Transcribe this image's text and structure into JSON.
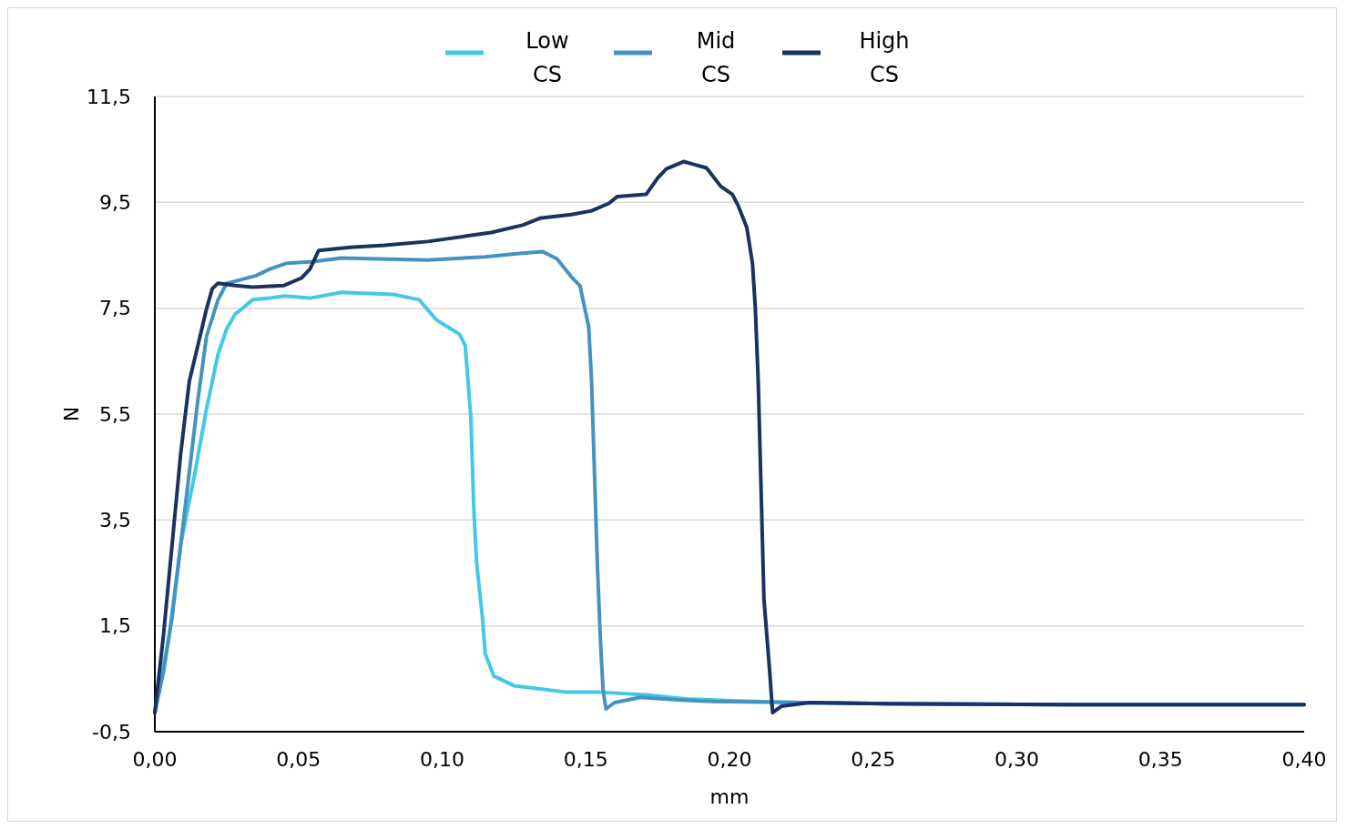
{
  "chart_data": {
    "type": "line",
    "xlabel": "mm",
    "ylabel": "N",
    "xlim": [
      0,
      0.4
    ],
    "ylim": [
      -0.5,
      11.5
    ],
    "xticks": [
      {
        "value": 0,
        "label": "0,00"
      },
      {
        "value": 0.05,
        "label": "0,05"
      },
      {
        "value": 0.1,
        "label": "0,10"
      },
      {
        "value": 0.15,
        "label": "0,15"
      },
      {
        "value": 0.2,
        "label": "0,20"
      },
      {
        "value": 0.25,
        "label": "0,25"
      },
      {
        "value": 0.3,
        "label": "0,30"
      },
      {
        "value": 0.35,
        "label": "0,35"
      },
      {
        "value": 0.4,
        "label": "0,40"
      }
    ],
    "yticks": [
      {
        "value": -0.5,
        "label": "-0,5"
      },
      {
        "value": 1.5,
        "label": "1,5"
      },
      {
        "value": 3.5,
        "label": "3,5"
      },
      {
        "value": 5.5,
        "label": "5,5"
      },
      {
        "value": 7.5,
        "label": "7,5"
      },
      {
        "value": 9.5,
        "label": "9,5"
      },
      {
        "value": 11.5,
        "label": "11,5"
      }
    ],
    "grid": "y",
    "legend": "top",
    "marker": "none",
    "line_style": "solid",
    "series": [
      {
        "name": "Low CS",
        "color": "#45c8e6",
        "x": [
          0,
          0.005,
          0.009,
          0.014,
          0.018,
          0.022,
          0.025,
          0.028,
          0.031,
          0.034,
          0.04,
          0.045,
          0.054,
          0.065,
          0.083,
          0.092,
          0.098,
          0.106,
          0.108,
          0.109,
          0.11,
          0.111,
          0.112,
          0.114,
          0.115,
          0.118,
          0.125,
          0.143,
          0.154,
          0.172,
          0.185,
          0.203,
          0.225,
          0.255,
          0.317,
          0.4
        ],
        "values": [
          -0.14,
          1.32,
          3.03,
          4.4,
          5.6,
          6.63,
          7.11,
          7.39,
          7.52,
          7.66,
          7.69,
          7.73,
          7.69,
          7.8,
          7.76,
          7.66,
          7.28,
          7.01,
          6.8,
          6.12,
          5.43,
          3.72,
          2.69,
          1.66,
          0.97,
          0.55,
          0.37,
          0.25,
          0.25,
          0.19,
          0.12,
          0.08,
          0.05,
          0.03,
          0.01,
          0.01
        ]
      },
      {
        "name": "Mid CS",
        "color": "#4593bd",
        "x": [
          0,
          0.003,
          0.006,
          0.009,
          0.012,
          0.015,
          0.018,
          0.022,
          0.025,
          0.035,
          0.04,
          0.046,
          0.055,
          0.065,
          0.095,
          0.115,
          0.126,
          0.135,
          0.14,
          0.145,
          0.148,
          0.149,
          0.151,
          0.152,
          0.153,
          0.154,
          0.155,
          0.156,
          0.157,
          0.16,
          0.169,
          0.182,
          0.194,
          0.225,
          0.255,
          0.317,
          0.4
        ],
        "values": [
          -0.14,
          0.63,
          1.66,
          3.03,
          4.4,
          5.77,
          6.97,
          7.66,
          7.97,
          8.11,
          8.24,
          8.35,
          8.38,
          8.45,
          8.41,
          8.47,
          8.53,
          8.57,
          8.43,
          8.09,
          7.92,
          7.66,
          7.15,
          6.12,
          4.4,
          2.69,
          1.32,
          0.29,
          -0.07,
          0.05,
          0.15,
          0.1,
          0.07,
          0.05,
          0.03,
          0.01,
          0.01
        ]
      },
      {
        "name": "High CS",
        "color": "#1b3160",
        "x": [
          0,
          0.003,
          0.006,
          0.009,
          0.012,
          0.015,
          0.018,
          0.02,
          0.022,
          0.028,
          0.034,
          0.045,
          0.051,
          0.054,
          0.057,
          0.068,
          0.08,
          0.095,
          0.108,
          0.117,
          0.128,
          0.134,
          0.145,
          0.152,
          0.158,
          0.161,
          0.171,
          0.175,
          0.178,
          0.184,
          0.192,
          0.197,
          0.201,
          0.203,
          0.206,
          0.208,
          0.209,
          0.21,
          0.211,
          0.212,
          0.214,
          0.215,
          0.218,
          0.228,
          0.255,
          0.317,
          0.4
        ],
        "values": [
          -0.14,
          1.32,
          3.03,
          4.75,
          6.12,
          6.8,
          7.49,
          7.87,
          7.97,
          7.93,
          7.9,
          7.93,
          8.07,
          8.24,
          8.59,
          8.65,
          8.69,
          8.76,
          8.86,
          8.93,
          9.07,
          9.2,
          9.27,
          9.34,
          9.48,
          9.61,
          9.65,
          9.96,
          10.13,
          10.27,
          10.15,
          9.8,
          9.65,
          9.44,
          9.03,
          8.35,
          7.49,
          6.12,
          4.06,
          2.0,
          0.63,
          -0.14,
          -0.02,
          0.05,
          0.03,
          0.01,
          0.01
        ]
      }
    ]
  }
}
